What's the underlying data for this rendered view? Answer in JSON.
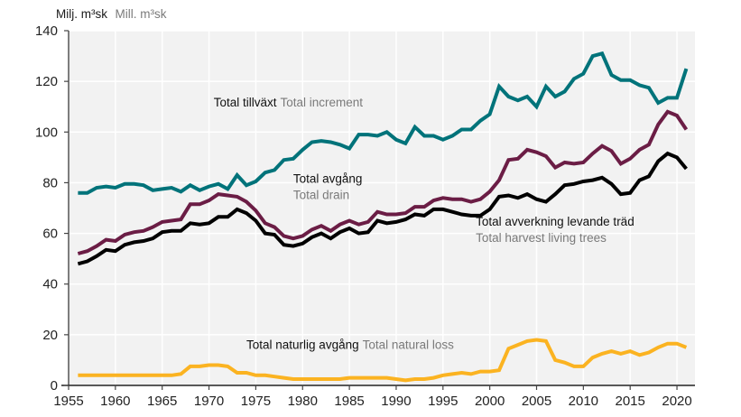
{
  "chart_data": {
    "type": "line",
    "title": "",
    "unit_label": {
      "sv": "Milj. m³sk",
      "en": "Mill. m³sk"
    },
    "xlabel": "",
    "ylabel": "Milj. m³sk / Mill. m³sk",
    "xlim": [
      1955,
      2022
    ],
    "ylim": [
      0,
      140
    ],
    "xticks": [
      1955,
      1960,
      1965,
      1970,
      1975,
      1980,
      1985,
      1990,
      1995,
      2000,
      2005,
      2010,
      2015,
      2020
    ],
    "yticks": [
      0,
      20,
      40,
      60,
      80,
      100,
      120,
      140
    ],
    "grid": true,
    "background": "#f2f2f2",
    "x": [
      1956,
      1957,
      1958,
      1959,
      1960,
      1961,
      1962,
      1963,
      1964,
      1965,
      1966,
      1967,
      1968,
      1969,
      1970,
      1971,
      1972,
      1973,
      1974,
      1975,
      1976,
      1977,
      1978,
      1979,
      1980,
      1981,
      1982,
      1983,
      1984,
      1985,
      1986,
      1987,
      1988,
      1989,
      1990,
      1991,
      1992,
      1993,
      1994,
      1995,
      1996,
      1997,
      1998,
      1999,
      2000,
      2001,
      2002,
      2003,
      2004,
      2005,
      2006,
      2007,
      2008,
      2009,
      2010,
      2011,
      2012,
      2013,
      2014,
      2015,
      2016,
      2017,
      2018,
      2019,
      2020,
      2021
    ],
    "series": [
      {
        "name": "Total increment",
        "label_sv": "Total tillväxt",
        "label_en": "Total increment",
        "color": "#00737a",
        "values": [
          76,
          76,
          78,
          78.5,
          78,
          79.5,
          79.5,
          79,
          77,
          77.5,
          78,
          76.5,
          79,
          77,
          78.5,
          79.5,
          77.5,
          83,
          79,
          80.5,
          84,
          85,
          89,
          89.5,
          93,
          96,
          96.5,
          96,
          95,
          93.5,
          99,
          99,
          98.5,
          100,
          97,
          95.5,
          102,
          98.5,
          98.5,
          97,
          98.5,
          101,
          101,
          104.5,
          107,
          118,
          114,
          112.5,
          114,
          110,
          118,
          114,
          116,
          121,
          123,
          130,
          131,
          122.5,
          120.5,
          120.5,
          118.5,
          117.5,
          111.5,
          113.5,
          113.5,
          125
        ]
      },
      {
        "name": "Total drain",
        "label_sv": "Total avgång",
        "label_en": "Total drain",
        "color": "#6b1d45",
        "values": [
          52,
          53,
          55,
          57.5,
          57,
          59.5,
          60.5,
          61,
          62.5,
          64.5,
          65,
          65.5,
          71.5,
          71.5,
          73,
          75.5,
          75,
          74.5,
          72.5,
          69,
          64,
          62.5,
          59,
          58,
          59,
          61.5,
          63,
          61,
          63.5,
          65,
          63.5,
          64.5,
          68.5,
          67.5,
          67.5,
          68,
          70.5,
          70.5,
          73,
          74,
          73.5,
          73.5,
          72.5,
          73.5,
          76.5,
          81,
          89,
          89.5,
          93,
          92,
          90.5,
          86,
          88,
          87.5,
          88,
          91.5,
          94.5,
          92.5,
          87.5,
          89.5,
          93,
          95,
          103,
          108,
          106.5,
          101
        ]
      },
      {
        "name": "Total harvest living trees",
        "label_sv": "Total avverkning levande träd",
        "label_en": "Total harvest living trees",
        "color": "#000000",
        "values": [
          48,
          49,
          51,
          53.5,
          53,
          55.5,
          56.5,
          57,
          58,
          60.5,
          61,
          61,
          64,
          63.5,
          64,
          66.5,
          66.5,
          69.5,
          68,
          65,
          60,
          59.5,
          55.5,
          55,
          56,
          58.5,
          60,
          58,
          60.5,
          62,
          60,
          60.5,
          65,
          64,
          64.5,
          65.5,
          67.5,
          67,
          69.5,
          69.5,
          68.5,
          67.5,
          67,
          67,
          69.5,
          74.5,
          75,
          74,
          75.5,
          73.5,
          72.5,
          75.5,
          79,
          79.5,
          80.5,
          81,
          82,
          79.5,
          75.5,
          76,
          81,
          82.5,
          88.5,
          91.5,
          90,
          85.5
        ]
      },
      {
        "name": "Total natural loss",
        "label_sv": "Total naturlig avgång",
        "label_en": "Total natural loss",
        "color": "#fbb321",
        "values": [
          4,
          4,
          4,
          4,
          4,
          4,
          4,
          4,
          4,
          4,
          4,
          4.5,
          7.5,
          7.5,
          8,
          8,
          7.5,
          5,
          5,
          4,
          4,
          3.5,
          3,
          2.5,
          2.5,
          2.5,
          2.5,
          2.5,
          2.5,
          3,
          3,
          3,
          3,
          3,
          2.5,
          2,
          2.5,
          2.5,
          3,
          4,
          4.5,
          5,
          4.5,
          5.5,
          5.5,
          6,
          14.5,
          16,
          17.5,
          18,
          17.5,
          10,
          9,
          7.5,
          7.5,
          11,
          12.5,
          13.5,
          12.5,
          13.5,
          12,
          13,
          15,
          16.5,
          16.5,
          15
        ]
      }
    ],
    "annotations": [
      {
        "series": "Total increment",
        "sv": "Total tillväxt",
        "en": "Total increment",
        "at": [
          1970.5,
          110
        ],
        "layout": "inline"
      },
      {
        "series": "Total drain",
        "sv": "Total avgång",
        "en": "Total drain",
        "at": [
          1979,
          80
        ],
        "layout": "stacked"
      },
      {
        "series": "Total harvest living trees",
        "sv": "Total avverkning levande träd",
        "en": "Total harvest living trees",
        "at": [
          1998.5,
          63
        ],
        "layout": "stacked"
      },
      {
        "series": "Total natural loss",
        "sv": "Total naturlig avgång",
        "en": "Total natural loss",
        "at": [
          1974,
          14.5
        ],
        "layout": "inline"
      }
    ]
  }
}
